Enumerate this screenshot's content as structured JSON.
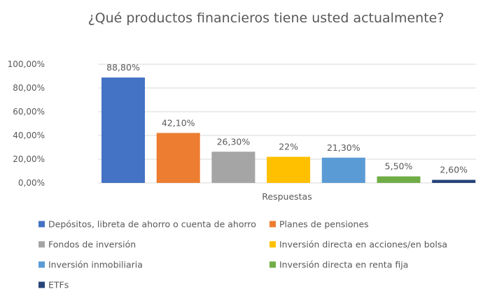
{
  "chart_data": {
    "type": "bar",
    "title": "¿Qué productos financieros tiene usted actualmente?",
    "categories": [
      "Respuestas"
    ],
    "xlabel": "",
    "ylabel": "",
    "ylim": [
      0,
      100
    ],
    "y_ticks": [
      "0,00%",
      "20,00%",
      "40,00%",
      "60,00%",
      "80,00%",
      "100,00%"
    ],
    "grid": true,
    "legend_position": "bottom",
    "series": [
      {
        "name": "Depósitos, libreta de ahorro o cuenta de ahorro",
        "values": [
          88.8
        ],
        "label": "88,80%",
        "color": "#4472C4"
      },
      {
        "name": "Planes de pensiones",
        "values": [
          42.1
        ],
        "label": "42,10%",
        "color": "#ED7D31"
      },
      {
        "name": "Fondos de inversión",
        "values": [
          26.3
        ],
        "label": "26,30%",
        "color": "#A5A5A5"
      },
      {
        "name": "Inversión directa en acciones/en bolsa",
        "values": [
          22
        ],
        "label": "22%",
        "color": "#FFC000"
      },
      {
        "name": "Inversión inmobiliaria",
        "values": [
          21.3
        ],
        "label": "21,30%",
        "color": "#5B9BD5"
      },
      {
        "name": "Inversión directa en renta fija",
        "values": [
          5.5
        ],
        "label": "5,50%",
        "color": "#70AD47"
      },
      {
        "name": "ETFs",
        "values": [
          2.6
        ],
        "label": "2,60%",
        "color": "#264478"
      }
    ]
  }
}
